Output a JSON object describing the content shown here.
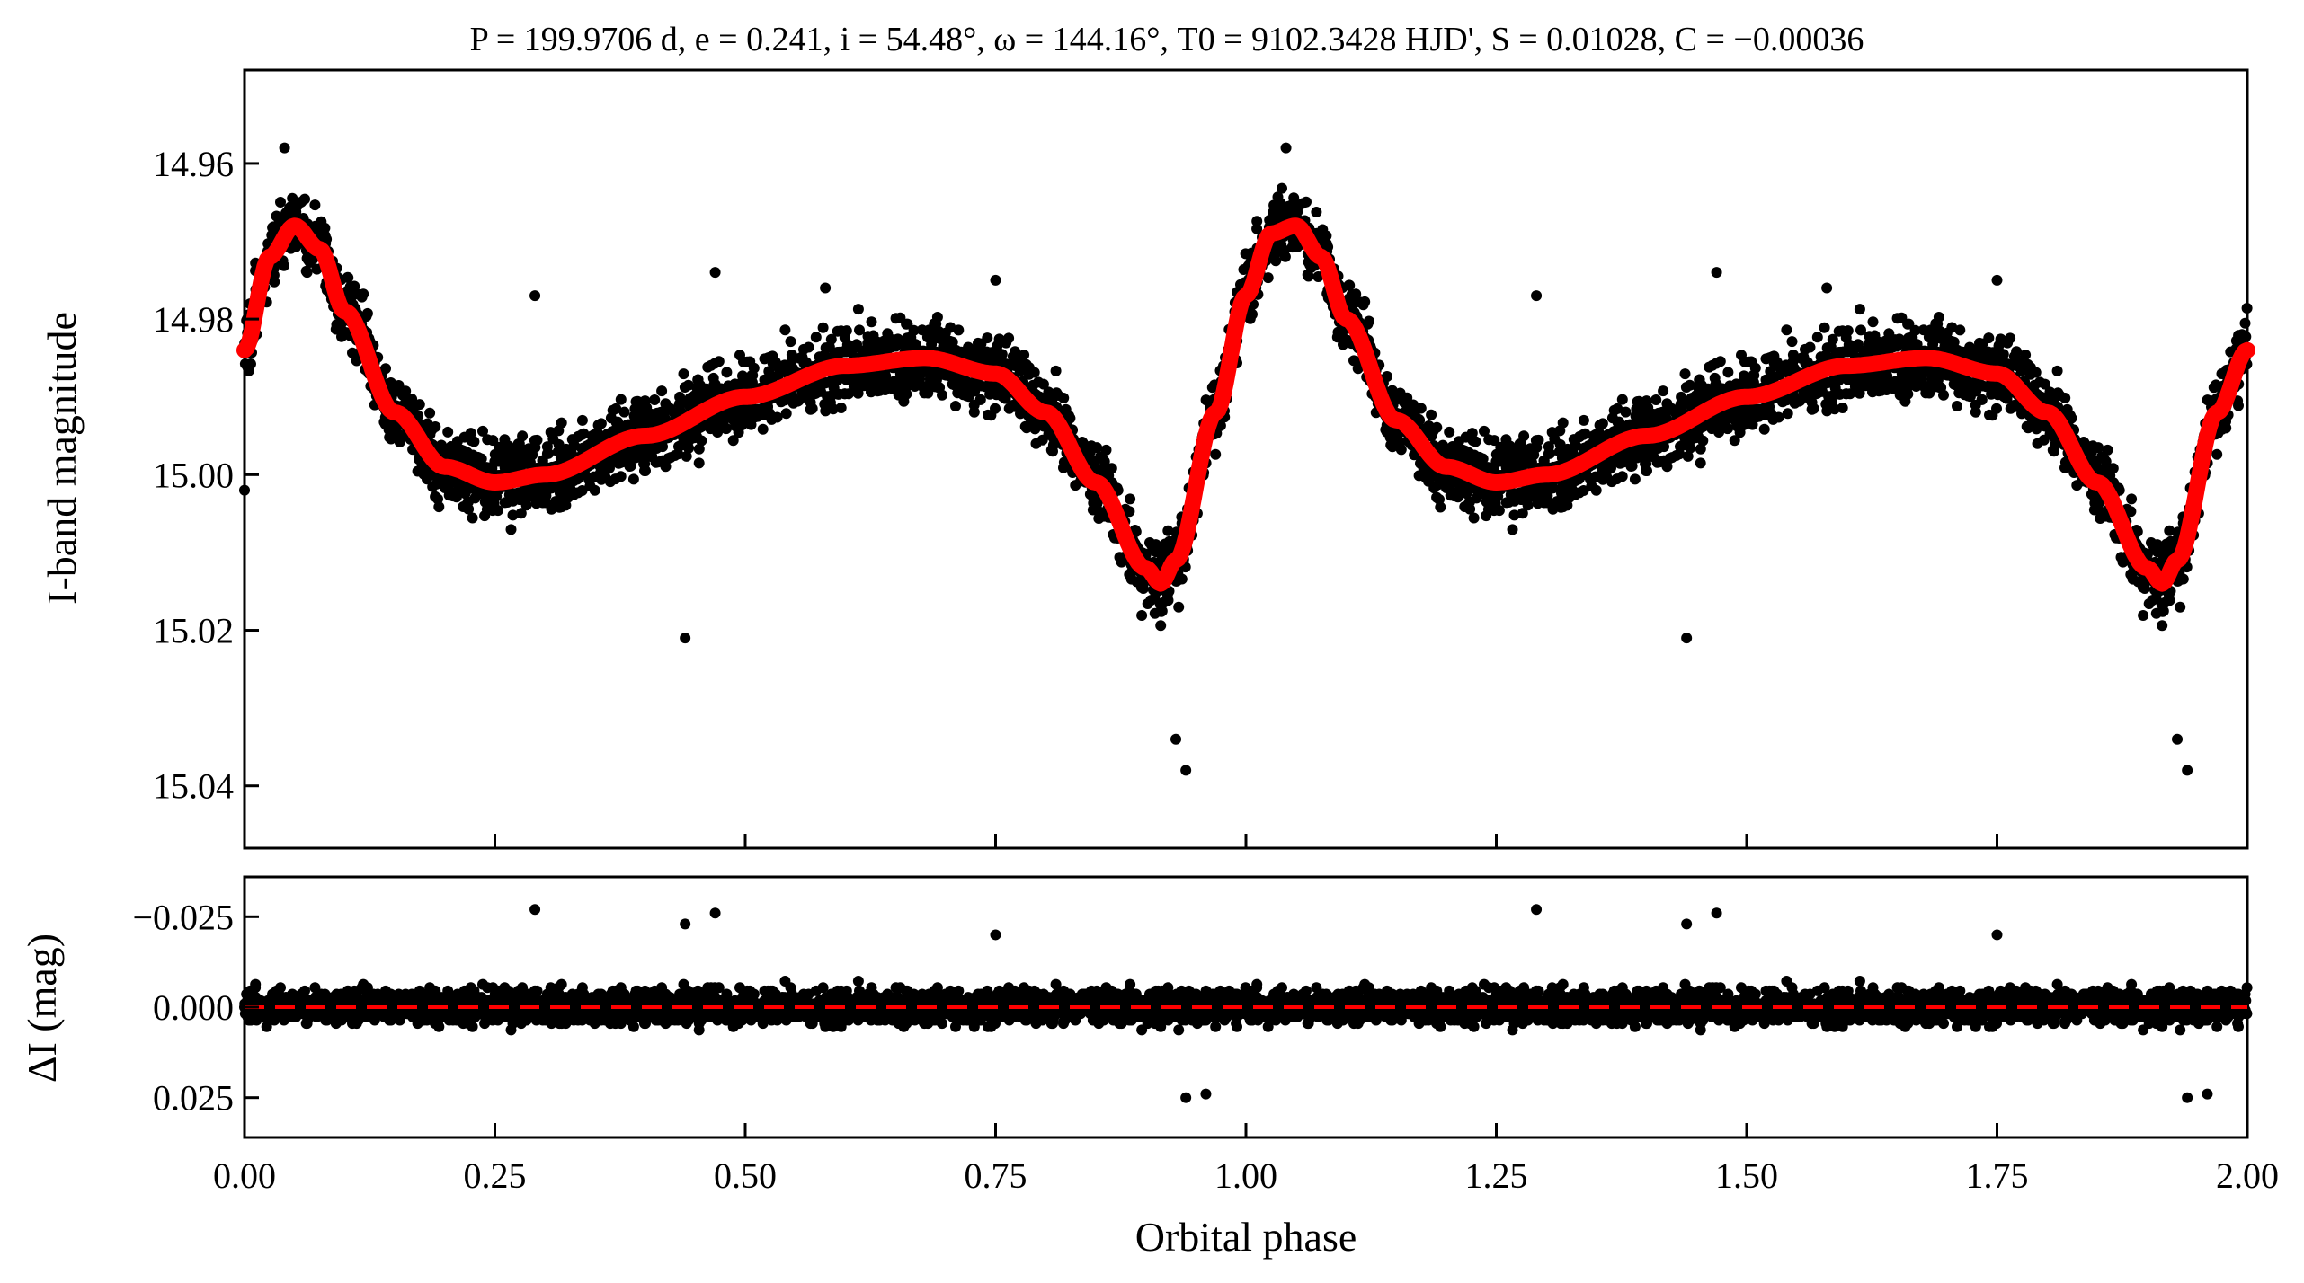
{
  "chart_data": [
    {
      "type": "scatter",
      "panel": "top",
      "title": "P = 199.9706 d, e = 0.241, i = 54.48°, ω = 144.16°, T0 = 9102.3428 HJD', S = 0.01028, C = −0.00036",
      "ylabel": "I-band magnitude",
      "xlabel": "",
      "xlim": [
        0.0,
        2.0
      ],
      "ylim": [
        15.048,
        14.948
      ],
      "y_inverted": true,
      "yticks": [
        14.96,
        14.98,
        15.0,
        15.02,
        15.04
      ],
      "ytick_labels": [
        "14.96",
        "14.98",
        "15.00",
        "15.02",
        "15.04"
      ],
      "xticks": [
        0.0,
        0.25,
        0.5,
        0.75,
        1.0,
        1.25,
        1.5,
        1.75,
        2.0
      ],
      "grid": false,
      "legend": "none",
      "points_color": "#000000",
      "model_color": "#ff0000",
      "model_curve": {
        "x": [
          0.0,
          0.025,
          0.05,
          0.075,
          0.1,
          0.15,
          0.2,
          0.25,
          0.3,
          0.4,
          0.5,
          0.6,
          0.68,
          0.75,
          0.8,
          0.85,
          0.9,
          0.915,
          0.93,
          0.97,
          1.0,
          1.025,
          1.05,
          1.075,
          1.1,
          1.15,
          1.2,
          1.25,
          1.3,
          1.4,
          1.5,
          1.6,
          1.68,
          1.75,
          1.8,
          1.85,
          1.9,
          1.915,
          1.93,
          1.97,
          2.0
        ],
        "y": [
          14.984,
          14.972,
          14.968,
          14.971,
          14.979,
          14.992,
          14.999,
          15.001,
          15.0,
          14.995,
          14.99,
          14.986,
          14.985,
          14.987,
          14.992,
          15.001,
          15.012,
          15.014,
          15.011,
          14.992,
          14.977,
          14.969,
          14.968,
          14.972,
          14.98,
          14.993,
          14.999,
          15.001,
          15.0,
          14.995,
          14.99,
          14.986,
          14.985,
          14.987,
          14.992,
          15.001,
          15.012,
          15.014,
          15.011,
          14.992,
          14.984
        ]
      },
      "notable_points": {
        "x": [
          0.0,
          0.04,
          0.47,
          0.58,
          0.75,
          0.93,
          0.94,
          1.04,
          1.47,
          1.58,
          1.75,
          1.93,
          1.94,
          0.44,
          1.44,
          0.29,
          1.29
        ],
        "y": [
          15.002,
          14.958,
          14.974,
          14.976,
          14.975,
          15.034,
          15.038,
          14.958,
          14.974,
          14.976,
          14.975,
          15.034,
          15.038,
          15.021,
          15.021,
          14.977,
          14.977
        ]
      }
    },
    {
      "type": "scatter",
      "panel": "bottom",
      "title": "",
      "ylabel": "ΔI (mag)",
      "xlabel": "Orbital phase",
      "xlim": [
        0.0,
        2.0
      ],
      "ylim": [
        0.036,
        -0.036
      ],
      "y_inverted": true,
      "yticks": [
        -0.025,
        0.0,
        0.025
      ],
      "ytick_labels": [
        "−0.025",
        "0.000",
        "0.025"
      ],
      "xticks": [
        0.0,
        0.25,
        0.5,
        0.75,
        1.0,
        1.25,
        1.5,
        1.75,
        2.0
      ],
      "xtick_labels": [
        "0.00",
        "0.25",
        "0.50",
        "0.75",
        "1.00",
        "1.25",
        "1.50",
        "1.75",
        "2.00"
      ],
      "grid": false,
      "legend": "none",
      "reference_line": {
        "y": 0.0,
        "style": "dashed",
        "color": "#ff0000"
      },
      "points_color": "#000000",
      "notable_points": {
        "x": [
          0.29,
          0.44,
          0.47,
          0.75,
          0.94,
          0.96,
          1.29,
          1.44,
          1.47,
          1.75,
          1.94,
          1.96
        ],
        "y": [
          -0.027,
          -0.023,
          -0.026,
          -0.02,
          0.025,
          0.024,
          -0.027,
          -0.023,
          -0.026,
          -0.02,
          0.025,
          0.024
        ]
      }
    }
  ]
}
